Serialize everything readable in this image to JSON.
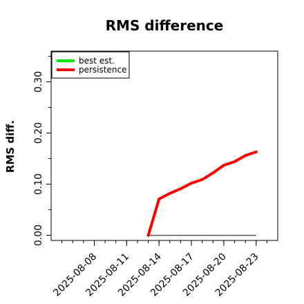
{
  "chart_data": {
    "type": "line",
    "title": "RMS difference",
    "xlabel": "",
    "ylabel": "RMS diff.",
    "x": [
      "2025-08-13",
      "2025-08-14",
      "2025-08-15",
      "2025-08-16",
      "2025-08-17",
      "2025-08-18",
      "2025-08-19",
      "2025-08-20",
      "2025-08-21",
      "2025-08-22",
      "2025-08-23"
    ],
    "series": [
      {
        "name": "best est.",
        "color": "#00ee00",
        "values": [
          0,
          0,
          0,
          0,
          0,
          0,
          0,
          0,
          0,
          0,
          0
        ]
      },
      {
        "name": "persistence",
        "color": "#ff0000",
        "values": [
          0.0,
          0.071,
          0.082,
          0.091,
          0.102,
          0.109,
          0.122,
          0.137,
          0.144,
          0.156,
          0.163
        ]
      }
    ],
    "xlim": [
      "2025-08-04",
      "2025-08-25"
    ],
    "ylim": [
      -0.01,
      0.36
    ],
    "x_ticks": [
      "2025-08-08",
      "2025-08-11",
      "2025-08-14",
      "2025-08-17",
      "2025-08-20",
      "2025-08-23"
    ],
    "y_ticks": [
      "0.00",
      "0.10",
      "0.20",
      "0.30"
    ],
    "y_tick_values": [
      0.0,
      0.1,
      0.2,
      0.3
    ],
    "y_minor_ticks": [
      0.05,
      0.15,
      0.25,
      0.35
    ],
    "grid": false,
    "legend": "top-left",
    "reference_line": {
      "y": 0,
      "from": "2025-08-13",
      "to": "2025-08-23",
      "color": "#555555"
    }
  }
}
